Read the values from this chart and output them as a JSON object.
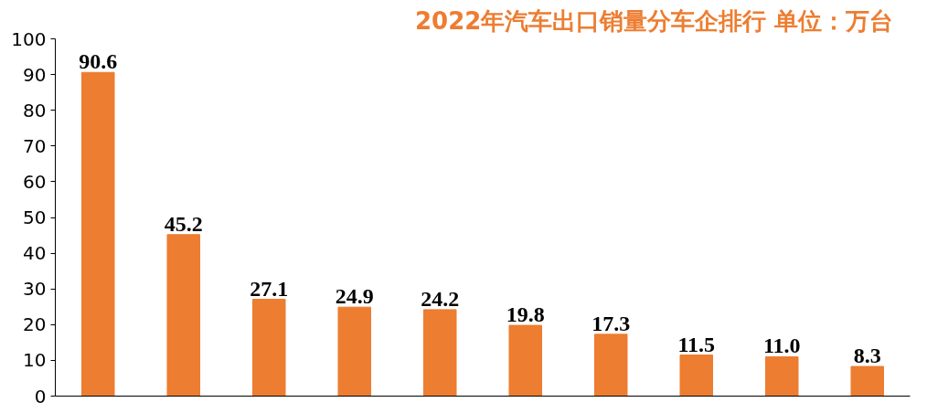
{
  "chart_data": {
    "type": "bar",
    "title": "2022年汽车出口销量分车企排行   单位：万台",
    "categories": [
      null,
      null,
      null,
      null,
      null,
      null,
      null,
      null,
      null,
      null
    ],
    "values": [
      90.6,
      45.2,
      27.1,
      24.9,
      24.2,
      19.8,
      17.3,
      11.5,
      11.0,
      8.3
    ],
    "value_labels": [
      "90.6",
      "45.2",
      "27.1",
      "24.9",
      "24.2",
      "19.8",
      "17.3",
      "11.5",
      "11.0",
      "8.3"
    ],
    "color": "#ed7d31",
    "ylim": [
      0,
      100
    ],
    "yticks": [
      0,
      10,
      20,
      30,
      40,
      50,
      60,
      70,
      80,
      90,
      100
    ],
    "grid": false
  }
}
